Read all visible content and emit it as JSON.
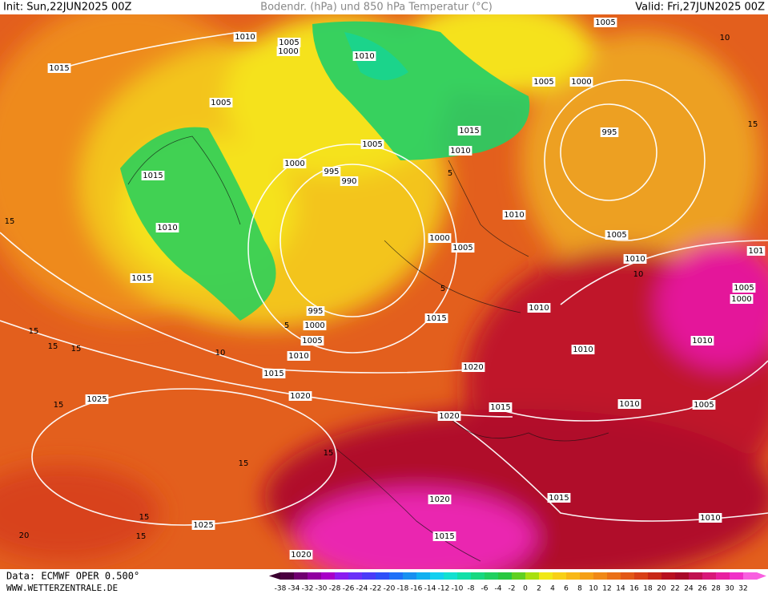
{
  "header": {
    "init": "Init: Sun,22JUN2025 00Z",
    "title": "Bodendr. (hPa) und 850 hPa Temperatur (°C)",
    "valid": "Valid: Fri,27JUN2025 00Z"
  },
  "isobar_labels": [
    "1010",
    "1005",
    "1000",
    "1010",
    "1005",
    "1015",
    "1005",
    "1000",
    "1005",
    "995",
    "1015",
    "1010",
    "1005",
    "1015",
    "1000",
    "995",
    "990",
    "1010",
    "1010",
    "1000",
    "1005",
    "1005",
    "1010",
    "1015",
    "995",
    "1000",
    "1005",
    "1015",
    "1010",
    "1010",
    "1015",
    "1010",
    "1010",
    "1020",
    "1020",
    "1025",
    "1020",
    "1015",
    "1010",
    "1005",
    "1005",
    "1000",
    "1020",
    "1015",
    "1025",
    "1010",
    "1015",
    "1020",
    "101"
  ],
  "isotherm_labels": [
    "15",
    "15",
    "15",
    "15",
    "10",
    "5",
    "15",
    "15",
    "15",
    "15",
    "15",
    "20",
    "15",
    "10",
    "5",
    "10",
    "5"
  ],
  "legend": {
    "ticks": [
      -38,
      -34,
      -32,
      -30,
      -28,
      -26,
      -24,
      -22,
      -20,
      -18,
      -16,
      -14,
      -12,
      -10,
      -8,
      -6,
      -4,
      -2,
      0,
      2,
      4,
      6,
      8,
      10,
      12,
      14,
      16,
      18,
      20,
      22,
      24,
      26,
      28,
      30,
      32
    ]
  },
  "footer": {
    "data": "Data: ECMWF OPER 0.500°",
    "site": "WWW.WETTERZENTRALE.DE"
  }
}
